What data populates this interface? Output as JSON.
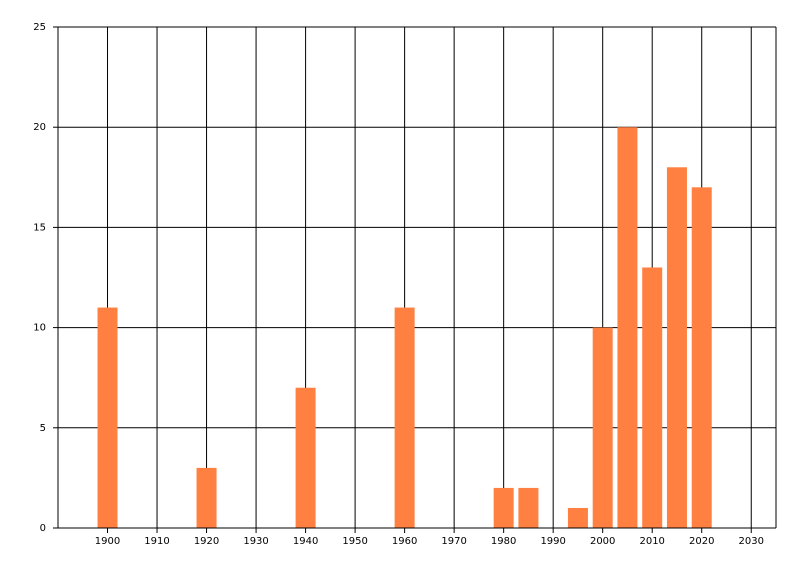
{
  "chart_data": {
    "type": "bar",
    "x": [
      1900,
      1920,
      1940,
      1960,
      1980,
      1985,
      1995,
      2000,
      2005,
      2010,
      2015,
      2020
    ],
    "values": [
      11,
      3,
      7,
      11,
      2,
      2,
      1,
      10,
      20,
      13,
      18,
      17
    ],
    "color": "#ff8040",
    "xlim": [
      1890,
      2035
    ],
    "xticks": [
      1900,
      1910,
      1920,
      1930,
      1940,
      1950,
      1960,
      1970,
      1980,
      1990,
      2000,
      2010,
      2020,
      2030
    ],
    "ylim": [
      0,
      25
    ],
    "yticks": [
      0,
      5,
      10,
      15,
      20,
      25
    ],
    "grid": true
  }
}
